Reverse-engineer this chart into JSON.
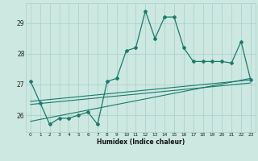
{
  "xlabel": "Humidex (Indice chaleur)",
  "x_values": [
    0,
    1,
    2,
    3,
    4,
    5,
    6,
    7,
    8,
    9,
    10,
    11,
    12,
    13,
    14,
    15,
    16,
    17,
    18,
    19,
    20,
    21,
    22,
    23
  ],
  "y_values": [
    27.1,
    26.4,
    25.7,
    25.9,
    25.9,
    26.0,
    26.1,
    25.7,
    27.1,
    27.2,
    28.1,
    28.2,
    29.4,
    28.5,
    29.2,
    29.2,
    28.2,
    27.75,
    27.75,
    27.75,
    27.75,
    27.7,
    28.4,
    27.15
  ],
  "line_color": "#1a7a6e",
  "bg_color": "#cce8e0",
  "grid_color": "#a8cfc8",
  "ylim": [
    25.45,
    29.65
  ],
  "yticks": [
    26,
    27,
    28,
    29
  ],
  "xlim": [
    -0.5,
    23.5
  ],
  "trend_lines": [
    {
      "x0": 0,
      "y0": 26.35,
      "x1": 23,
      "y1": 27.05
    },
    {
      "x0": 0,
      "y0": 26.45,
      "x1": 23,
      "y1": 27.15
    },
    {
      "x0": 0,
      "y0": 25.8,
      "x1": 23,
      "y1": 27.2
    }
  ]
}
